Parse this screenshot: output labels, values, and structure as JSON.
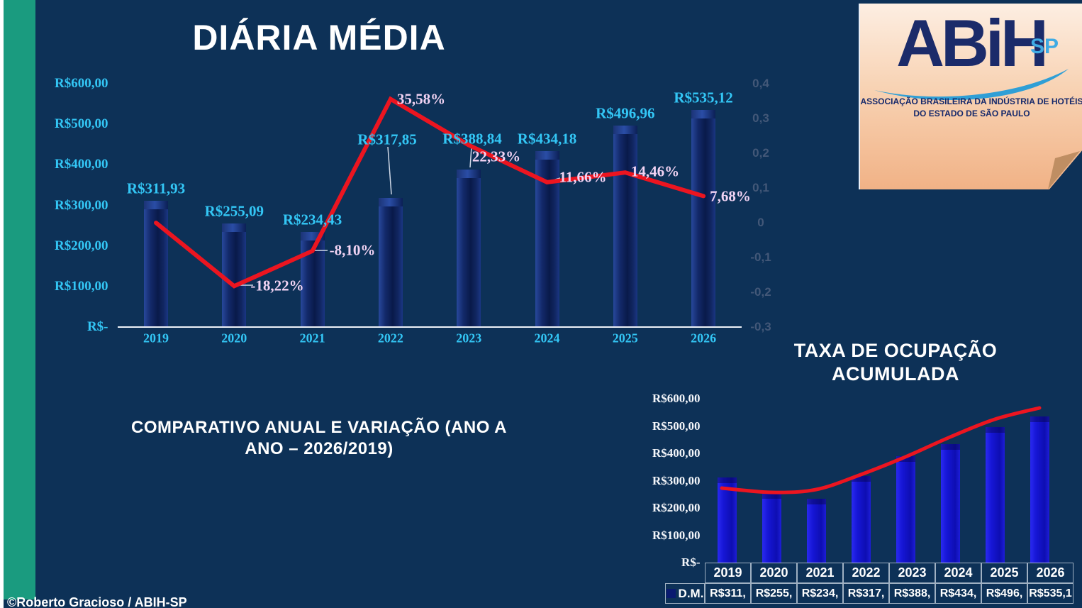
{
  "slide": {
    "title": "DIÁRIA MÉDIA",
    "subtitle_line1": "COMPARATIVO ANUAL E VARIAÇÃO (ANO A",
    "subtitle_line2": "ANO – 2026/2019)",
    "footer_credit": "©Roberto Gracioso / ABIH-SP",
    "colors": {
      "background": "#0d3157",
      "accent_teal": "#1a9b7f",
      "bar_navy": "#0a1b4c",
      "bar_blue": "#1515d2",
      "line_red": "#ec1520",
      "label_cyan": "#33c6f5",
      "label_pink": "#f1d3f3",
      "right_axis_gray": "#435878"
    }
  },
  "logo": {
    "wordmark": "ABiH",
    "region": "SP",
    "org_line1": "ASSOCIAÇÃO BRASILEIRA DA INDÚSTRIA DE HOTÉIS",
    "org_line2": "DO ESTADO DE SÃO PAULO",
    "swoosh_icon": "swoosh-icon",
    "folded_corner_icon": "folded-corner-icon"
  },
  "chart_data": [
    {
      "id": "diaria-media",
      "type": "bar+line",
      "title": "DIÁRIA MÉDIA",
      "categories": [
        "2019",
        "2020",
        "2021",
        "2022",
        "2023",
        "2024",
        "2025",
        "2026"
      ],
      "series": [
        {
          "name": "Diária média (R$)",
          "type": "bar",
          "values": [
            311.93,
            255.09,
            234.43,
            317.85,
            388.84,
            434.18,
            496.96,
            535.12
          ],
          "labels": [
            "R$311,93",
            "R$255,09",
            "R$234,43",
            "R$317,85",
            "R$388,84",
            "R$434,18",
            "R$496,96",
            "R$535,12"
          ]
        },
        {
          "name": "Variação ano a ano (%)",
          "type": "line",
          "values": [
            0,
            -18.22,
            -8.1,
            35.58,
            22.33,
            11.66,
            14.46,
            7.68
          ],
          "labels": [
            "",
            "-18,22%",
            "-8,10%",
            "35,58%",
            "22,33%",
            "11,66%",
            "14,46%",
            "7,68%"
          ]
        }
      ],
      "left_axis_ticks": [
        "R$600,00",
        "R$500,00",
        "R$400,00",
        "R$300,00",
        "R$200,00",
        "R$100,00",
        "R$-"
      ],
      "left_axis_range": [
        0,
        600
      ],
      "right_axis_ticks": [
        "0,4",
        "0,3",
        "0,2",
        "0,1",
        "0",
        "-0,1",
        "-0,2",
        "-0,3"
      ],
      "right_axis_range": [
        -0.3,
        0.4
      ],
      "grid": false,
      "legend": "none"
    },
    {
      "id": "taxa-ocupacao-acumulada",
      "type": "bar+line",
      "title_line1": "TAXA DE OCUPAÇÃO",
      "title_line2": "ACUMULADA",
      "categories": [
        "2019",
        "2020",
        "2021",
        "2022",
        "2023",
        "2024",
        "2025",
        "2026"
      ],
      "series": [
        {
          "name": "D.M.",
          "type": "bar",
          "values": [
            311.93,
            255.09,
            234.43,
            317.85,
            388.84,
            434.18,
            496.96,
            535.12
          ]
        },
        {
          "name": "tendência",
          "type": "line-smooth"
        }
      ],
      "axis_ticks": [
        "R$600,00",
        "R$500,00",
        "R$400,00",
        "R$300,00",
        "R$200,00",
        "R$100,00",
        "R$-"
      ],
      "axis_range": [
        0,
        600
      ],
      "grid": false,
      "table": {
        "row_label": "D.M.",
        "legend_color": "#0a1a70",
        "values": [
          "R$311,",
          "R$255,",
          "R$234,",
          "R$317,",
          "R$388,",
          "R$434,",
          "R$496,",
          "R$535,1"
        ]
      }
    }
  ]
}
